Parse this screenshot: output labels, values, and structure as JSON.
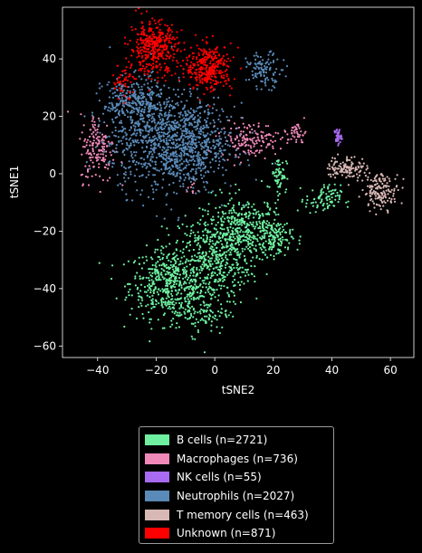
{
  "chart_data": {
    "type": "scatter",
    "title": "",
    "xlabel": "tSNE2",
    "ylabel": "tSNE1",
    "xlim": [
      -52,
      68
    ],
    "ylim": [
      -64,
      58
    ],
    "xticks": [
      -40,
      -20,
      0,
      20,
      40,
      60
    ],
    "yticks": [
      -60,
      -40,
      -20,
      0,
      20,
      40
    ],
    "xtick_labels": [
      "−40",
      "−20",
      "0",
      "20",
      "40",
      "60"
    ],
    "ytick_labels": [
      "−60",
      "−40",
      "−20",
      "0",
      "20",
      "40"
    ],
    "grid": false,
    "legend_position": "below",
    "series": [
      {
        "name": "B cells (n=2721)",
        "color": "#6ef0a0",
        "clusters": [
          {
            "cx": -15,
            "cy": -38,
            "sx": 7,
            "sy": 6,
            "n": 520
          },
          {
            "cx": 0,
            "cy": -30,
            "sx": 6,
            "sy": 8,
            "n": 380
          },
          {
            "cx": 10,
            "cy": -20,
            "sx": 7,
            "sy": 6,
            "n": 420
          },
          {
            "cx": 20,
            "cy": -22,
            "sx": 3,
            "sy": 3,
            "n": 110
          },
          {
            "cx": 22,
            "cy": 0,
            "sx": 1.3,
            "sy": 3,
            "n": 60
          },
          {
            "cx": 37,
            "cy": -9,
            "sx": 3,
            "sy": 2.5,
            "n": 90
          },
          {
            "cx": -5,
            "cy": -48,
            "sx": 5,
            "sy": 4,
            "n": 120
          }
        ]
      },
      {
        "name": "Macrophages (n=736)",
        "color": "#f088b8",
        "clusters": [
          {
            "cx": -40,
            "cy": 9,
            "sx": 3,
            "sy": 6,
            "n": 160
          },
          {
            "cx": 12,
            "cy": 12,
            "sx": 5,
            "sy": 3,
            "n": 150
          },
          {
            "cx": 28,
            "cy": 14,
            "sx": 1.6,
            "sy": 2,
            "n": 40
          },
          {
            "cx": -8,
            "cy": -5,
            "sx": 1.5,
            "sy": 1.5,
            "n": 10
          }
        ]
      },
      {
        "name": "NK cells (n=55)",
        "color": "#a86af0",
        "clusters": [
          {
            "cx": 42,
            "cy": 13,
            "sx": 0.6,
            "sy": 1.4,
            "n": 40
          }
        ]
      },
      {
        "name": "Neutrophils (n=2027)",
        "color": "#5a8ab8",
        "clusters": [
          {
            "cx": -18,
            "cy": 12,
            "sx": 9,
            "sy": 9,
            "n": 900
          },
          {
            "cx": -5,
            "cy": 10,
            "sx": 6,
            "sy": 7,
            "n": 300
          },
          {
            "cx": -28,
            "cy": 25,
            "sx": 5,
            "sy": 4,
            "n": 250
          },
          {
            "cx": 17,
            "cy": 36,
            "sx": 3,
            "sy": 3,
            "n": 110
          }
        ]
      },
      {
        "name": "T memory cells (n=463)",
        "color": "#d8b8b4",
        "clusters": [
          {
            "cx": 57,
            "cy": -6,
            "sx": 3,
            "sy": 3,
            "n": 150
          },
          {
            "cx": 45,
            "cy": 2,
            "sx": 3.5,
            "sy": 2,
            "n": 120
          }
        ]
      },
      {
        "name": "Unknown (n=871)",
        "color": "#ff0000",
        "clusters": [
          {
            "cx": -21,
            "cy": 44,
            "sx": 4,
            "sy": 4.5,
            "n": 380
          },
          {
            "cx": -2,
            "cy": 37,
            "sx": 4,
            "sy": 4,
            "n": 330
          },
          {
            "cx": -31,
            "cy": 32,
            "sx": 2,
            "sy": 3,
            "n": 50
          }
        ]
      }
    ]
  }
}
